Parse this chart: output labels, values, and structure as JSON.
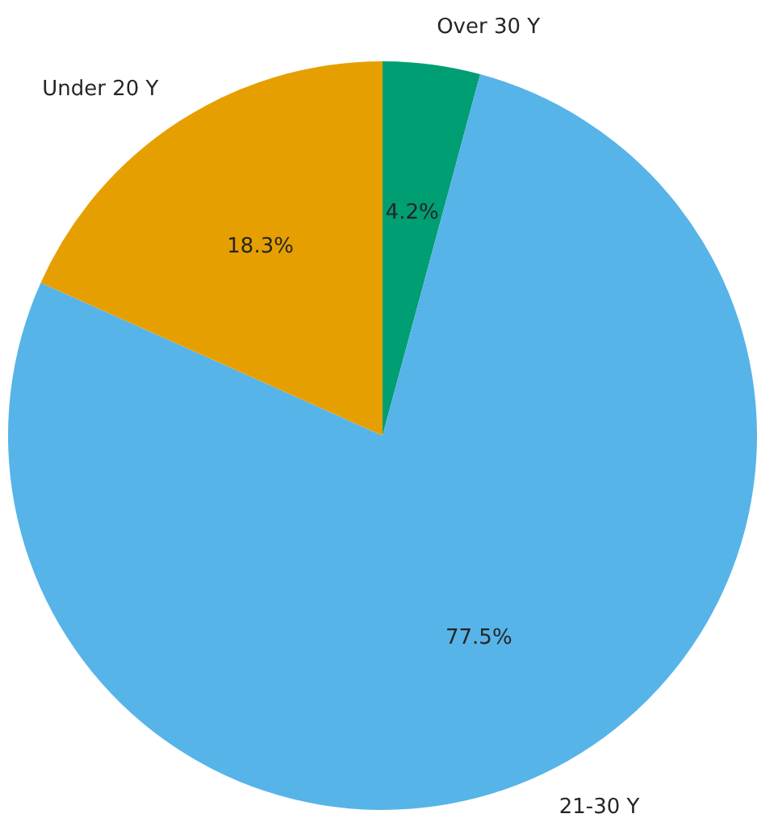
{
  "chart_data": {
    "type": "pie",
    "categories": [
      "Over 30 Y",
      "21-30 Y",
      "Under 20 Y"
    ],
    "values": [
      4.2,
      77.5,
      18.3
    ],
    "colors": [
      "#009e73",
      "#56b4e9",
      "#e69f00"
    ],
    "value_labels": [
      "4.2%",
      "77.5%",
      "18.3%"
    ],
    "legend": false
  }
}
